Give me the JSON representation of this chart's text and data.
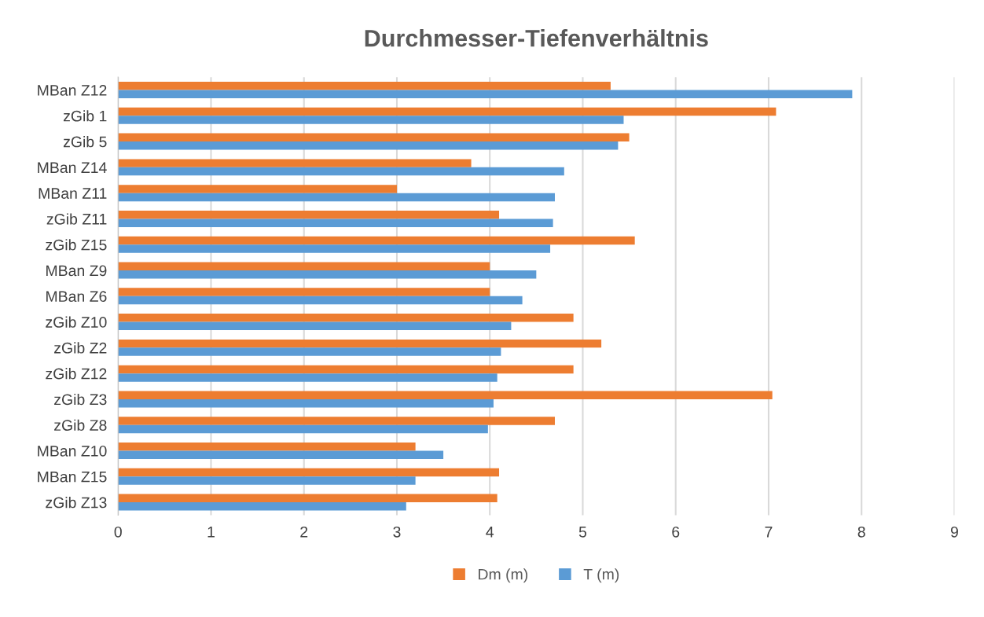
{
  "chart_data": {
    "type": "bar",
    "orientation": "horizontal",
    "title": "Durchmesser-Tiefenverhältnis",
    "categories": [
      "MBan Z12",
      "zGib 1",
      "zGib 5",
      "MBan Z14",
      "MBan Z11",
      "zGib Z11",
      "zGib Z15",
      "MBan Z9",
      "MBan Z6",
      "zGib Z10",
      "zGib Z2",
      "zGib Z12",
      "zGib Z3",
      "zGib Z8",
      "MBan Z10",
      "MBan Z15",
      "zGib Z13"
    ],
    "series": [
      {
        "name": "Dm (m)",
        "color": "#ed7d31",
        "values": [
          5.3,
          7.08,
          5.5,
          3.8,
          3.0,
          4.1,
          5.56,
          4.0,
          4.0,
          4.9,
          5.2,
          4.9,
          7.04,
          4.7,
          3.2,
          4.1,
          4.08
        ]
      },
      {
        "name": "T (m)",
        "color": "#5b9bd5",
        "values": [
          7.9,
          5.44,
          5.38,
          4.8,
          4.7,
          4.68,
          4.65,
          4.5,
          4.35,
          4.23,
          4.12,
          4.08,
          4.04,
          3.98,
          3.5,
          3.2,
          3.1
        ]
      }
    ],
    "xlim": [
      0,
      9
    ],
    "xticks": [
      0,
      1,
      2,
      3,
      4,
      5,
      6,
      7,
      8,
      9
    ],
    "grid": "x",
    "legend": "bottom"
  }
}
